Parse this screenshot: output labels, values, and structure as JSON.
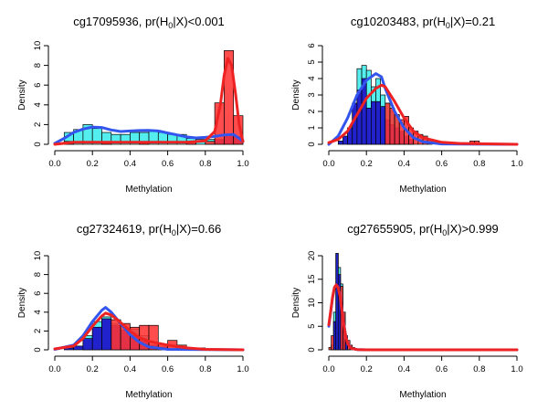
{
  "figure": {
    "colors": {
      "cyan": "#55eeee",
      "blue": "#2222cc",
      "red": "#ff3333",
      "blue_line": "#3355ee",
      "red_line": "#ee2222"
    }
  },
  "chart_data": [
    {
      "type": "bar",
      "title_prefix": "cg17095936, pr(H",
      "title_sub": "0",
      "title_suffix": "|X)<0.001",
      "xlabel": "Methylation",
      "ylabel": "Density",
      "xlim": [
        0.0,
        1.0
      ],
      "ylim": [
        0,
        10
      ],
      "xticks": [
        "0.0",
        "0.2",
        "0.4",
        "0.6",
        "0.8",
        "1.0"
      ],
      "yticks": [
        "0",
        "2",
        "4",
        "6",
        "8",
        "10"
      ],
      "bin_width": 0.05,
      "bins_cyan": [
        [
          0.05,
          0.1,
          1.2
        ],
        [
          0.1,
          0.15,
          1.5
        ],
        [
          0.15,
          0.2,
          2.0
        ],
        [
          0.2,
          0.25,
          1.6
        ],
        [
          0.25,
          0.3,
          1.2
        ],
        [
          0.3,
          0.35,
          1.0
        ],
        [
          0.35,
          0.4,
          1.0
        ],
        [
          0.4,
          0.45,
          1.2
        ],
        [
          0.45,
          0.5,
          1.2
        ],
        [
          0.5,
          0.55,
          1.3
        ],
        [
          0.55,
          0.6,
          1.2
        ],
        [
          0.6,
          0.65,
          1.0
        ],
        [
          0.65,
          0.7,
          1.0
        ],
        [
          0.7,
          0.75,
          0.6
        ],
        [
          0.75,
          0.8,
          0.5
        ],
        [
          0.8,
          0.85,
          0.5
        ]
      ],
      "bins_blue": [
        [
          0.85,
          0.9,
          0.5
        ],
        [
          0.9,
          0.95,
          1.0
        ],
        [
          0.95,
          1.0,
          0.8
        ]
      ],
      "bins_red": [
        [
          0.05,
          0.1,
          0.3
        ],
        [
          0.25,
          0.3,
          0.2
        ],
        [
          0.45,
          0.5,
          0.2
        ],
        [
          0.7,
          0.75,
          0.2
        ],
        [
          0.8,
          0.85,
          0.3
        ],
        [
          0.85,
          0.9,
          4.2
        ],
        [
          0.9,
          0.95,
          9.5
        ],
        [
          0.95,
          1.0,
          2.9
        ]
      ],
      "curve_blue": [
        [
          0.0,
          0.1
        ],
        [
          0.05,
          0.6
        ],
        [
          0.1,
          1.2
        ],
        [
          0.15,
          1.55
        ],
        [
          0.2,
          1.75
        ],
        [
          0.25,
          1.7
        ],
        [
          0.3,
          1.45
        ],
        [
          0.35,
          1.3
        ],
        [
          0.4,
          1.35
        ],
        [
          0.45,
          1.4
        ],
        [
          0.5,
          1.42
        ],
        [
          0.55,
          1.35
        ],
        [
          0.6,
          1.15
        ],
        [
          0.65,
          0.95
        ],
        [
          0.7,
          0.75
        ],
        [
          0.75,
          0.65
        ],
        [
          0.8,
          0.7
        ],
        [
          0.85,
          0.8
        ],
        [
          0.9,
          0.95
        ],
        [
          0.95,
          1.0
        ],
        [
          0.98,
          0.6
        ],
        [
          1.0,
          0.3
        ]
      ],
      "curve_red": [
        [
          0.0,
          0.0
        ],
        [
          0.1,
          0.2
        ],
        [
          0.3,
          0.2
        ],
        [
          0.5,
          0.2
        ],
        [
          0.7,
          0.2
        ],
        [
          0.8,
          0.35
        ],
        [
          0.85,
          1.3
        ],
        [
          0.88,
          4.0
        ],
        [
          0.9,
          7.0
        ],
        [
          0.92,
          8.7
        ],
        [
          0.94,
          8.0
        ],
        [
          0.96,
          5.2
        ],
        [
          0.98,
          2.0
        ],
        [
          1.0,
          0.3
        ]
      ]
    },
    {
      "type": "bar",
      "title_prefix": "cg10203483, pr(H",
      "title_sub": "0",
      "title_suffix": "|X)=0.21",
      "xlabel": "Methylation",
      "ylabel": "Density",
      "xlim": [
        0.0,
        1.0
      ],
      "ylim": [
        0,
        6
      ],
      "xticks": [
        "0.0",
        "0.2",
        "0.4",
        "0.6",
        "0.8",
        "1.0"
      ],
      "yticks": [
        "0",
        "1",
        "2",
        "3",
        "4",
        "5",
        "6"
      ],
      "bin_width": 0.025,
      "bins_cyan": [
        [
          0.1,
          0.125,
          1.0
        ],
        [
          0.125,
          0.15,
          2.5
        ],
        [
          0.15,
          0.175,
          4.6
        ],
        [
          0.175,
          0.2,
          4.8
        ],
        [
          0.2,
          0.225,
          4.5
        ],
        [
          0.225,
          0.25,
          3.5
        ],
        [
          0.25,
          0.275,
          4.0
        ],
        [
          0.275,
          0.3,
          3.0
        ],
        [
          0.3,
          0.325,
          2.5
        ],
        [
          0.325,
          0.35,
          2.0
        ],
        [
          0.35,
          0.375,
          1.8
        ]
      ],
      "bins_blue": [
        [
          0.05,
          0.075,
          0.2
        ],
        [
          0.075,
          0.1,
          0.5
        ],
        [
          0.1,
          0.125,
          1.0
        ],
        [
          0.125,
          0.15,
          2.5
        ],
        [
          0.15,
          0.175,
          3.3
        ],
        [
          0.175,
          0.2,
          4.0
        ],
        [
          0.2,
          0.225,
          2.2
        ],
        [
          0.225,
          0.25,
          2.6
        ],
        [
          0.25,
          0.275,
          2.6
        ],
        [
          0.275,
          0.3,
          2.3
        ],
        [
          0.3,
          0.325,
          1.5
        ],
        [
          0.325,
          0.35,
          1.2
        ],
        [
          0.35,
          0.375,
          1.0
        ],
        [
          0.375,
          0.4,
          0.8
        ],
        [
          0.4,
          0.425,
          0.5
        ],
        [
          0.425,
          0.45,
          0.3
        ]
      ],
      "bins_red": [
        [
          0.3,
          0.325,
          2.5
        ],
        [
          0.325,
          0.35,
          2.2
        ],
        [
          0.35,
          0.375,
          1.8
        ],
        [
          0.375,
          0.4,
          1.5
        ],
        [
          0.4,
          0.425,
          1.7
        ],
        [
          0.425,
          0.45,
          1.0
        ],
        [
          0.45,
          0.475,
          0.8
        ],
        [
          0.475,
          0.5,
          0.6
        ],
        [
          0.5,
          0.525,
          0.5
        ],
        [
          0.525,
          0.55,
          0.3
        ],
        [
          0.6,
          0.625,
          0.15
        ],
        [
          0.75,
          0.775,
          0.2
        ],
        [
          0.775,
          0.8,
          0.2
        ]
      ],
      "curve_blue": [
        [
          0.0,
          0.0
        ],
        [
          0.05,
          0.5
        ],
        [
          0.1,
          1.6
        ],
        [
          0.15,
          3.0
        ],
        [
          0.2,
          3.9
        ],
        [
          0.25,
          4.3
        ],
        [
          0.28,
          4.1
        ],
        [
          0.3,
          3.4
        ],
        [
          0.35,
          2.0
        ],
        [
          0.4,
          1.0
        ],
        [
          0.45,
          0.4
        ],
        [
          0.5,
          0.15
        ],
        [
          0.6,
          0.02
        ],
        [
          1.0,
          0.0
        ]
      ],
      "curve_red": [
        [
          0.0,
          0.1
        ],
        [
          0.05,
          0.3
        ],
        [
          0.1,
          0.8
        ],
        [
          0.15,
          1.8
        ],
        [
          0.2,
          2.8
        ],
        [
          0.25,
          3.4
        ],
        [
          0.28,
          3.6
        ],
        [
          0.3,
          3.5
        ],
        [
          0.35,
          2.6
        ],
        [
          0.4,
          1.6
        ],
        [
          0.45,
          0.8
        ],
        [
          0.5,
          0.4
        ],
        [
          0.6,
          0.12
        ],
        [
          0.7,
          0.05
        ],
        [
          1.0,
          0.0
        ]
      ]
    },
    {
      "type": "bar",
      "title_prefix": "cg27324619, pr(H",
      "title_sub": "0",
      "title_suffix": "|X)=0.66",
      "xlabel": "Methylation",
      "ylabel": "Density",
      "xlim": [
        0.0,
        1.0
      ],
      "ylim": [
        0,
        10
      ],
      "xticks": [
        "0.0",
        "0.2",
        "0.4",
        "0.6",
        "0.8",
        "1.0"
      ],
      "yticks": [
        "0",
        "2",
        "4",
        "6",
        "8",
        "10"
      ],
      "bin_width": 0.05,
      "bins_cyan": [
        [
          0.15,
          0.2,
          1.5
        ],
        [
          0.2,
          0.25,
          3.0
        ],
        [
          0.25,
          0.3,
          3.5
        ],
        [
          0.3,
          0.35,
          2.8
        ],
        [
          0.35,
          0.4,
          2.0
        ],
        [
          0.4,
          0.45,
          2.2
        ],
        [
          0.45,
          0.5,
          1.5
        ]
      ],
      "bins_blue": [
        [
          0.05,
          0.1,
          0.2
        ],
        [
          0.1,
          0.15,
          0.4
        ],
        [
          0.15,
          0.2,
          1.2
        ],
        [
          0.2,
          0.25,
          2.4
        ],
        [
          0.25,
          0.3,
          3.3
        ],
        [
          0.3,
          0.35,
          2.6
        ],
        [
          0.35,
          0.4,
          2.1
        ],
        [
          0.4,
          0.45,
          1.5
        ],
        [
          0.45,
          0.5,
          1.0
        ],
        [
          0.5,
          0.55,
          0.5
        ],
        [
          0.55,
          0.6,
          0.3
        ]
      ],
      "bins_red": [
        [
          0.3,
          0.35,
          3.2
        ],
        [
          0.35,
          0.4,
          2.8
        ],
        [
          0.4,
          0.45,
          2.4
        ],
        [
          0.45,
          0.5,
          2.6
        ],
        [
          0.5,
          0.55,
          2.6
        ],
        [
          0.55,
          0.6,
          0.6
        ],
        [
          0.6,
          0.65,
          1.0
        ],
        [
          0.65,
          0.7,
          0.5
        ],
        [
          0.75,
          0.8,
          0.2
        ],
        [
          0.85,
          0.9,
          0.1
        ]
      ],
      "curve_blue": [
        [
          0.0,
          0.05
        ],
        [
          0.1,
          0.5
        ],
        [
          0.15,
          1.5
        ],
        [
          0.2,
          3.0
        ],
        [
          0.25,
          4.2
        ],
        [
          0.27,
          4.5
        ],
        [
          0.3,
          4.0
        ],
        [
          0.35,
          2.8
        ],
        [
          0.4,
          1.6
        ],
        [
          0.45,
          0.8
        ],
        [
          0.5,
          0.3
        ],
        [
          0.6,
          0.05
        ],
        [
          1.0,
          0.0
        ]
      ],
      "curve_red": [
        [
          0.0,
          0.1
        ],
        [
          0.1,
          0.4
        ],
        [
          0.15,
          1.2
        ],
        [
          0.2,
          2.5
        ],
        [
          0.25,
          3.6
        ],
        [
          0.27,
          3.9
        ],
        [
          0.3,
          3.7
        ],
        [
          0.35,
          2.9
        ],
        [
          0.4,
          2.0
        ],
        [
          0.45,
          1.3
        ],
        [
          0.5,
          0.9
        ],
        [
          0.55,
          0.7
        ],
        [
          0.6,
          0.5
        ],
        [
          0.7,
          0.2
        ],
        [
          0.8,
          0.05
        ],
        [
          1.0,
          0.0
        ]
      ]
    },
    {
      "type": "bar",
      "title_prefix": "cg27655905, pr(H",
      "title_sub": "0",
      "title_suffix": "|X)>0.999",
      "xlabel": "Methylation",
      "ylabel": "Density",
      "xlim": [
        0.0,
        1.0
      ],
      "ylim": [
        0,
        20
      ],
      "xticks": [
        "0.0",
        "0.2",
        "0.4",
        "0.6",
        "0.8",
        "1.0"
      ],
      "yticks": [
        "0",
        "5",
        "10",
        "15",
        "20"
      ],
      "bin_width": 0.0125,
      "bins_cyan": [
        [
          0.0125,
          0.025,
          1.0
        ],
        [
          0.025,
          0.0375,
          8.0
        ],
        [
          0.0375,
          0.05,
          20.5
        ],
        [
          0.05,
          0.0625,
          17.5
        ],
        [
          0.0625,
          0.075,
          14.0
        ],
        [
          0.075,
          0.0875,
          8.0
        ],
        [
          0.0875,
          0.1,
          3.0
        ],
        [
          0.1,
          0.1125,
          1.0
        ]
      ],
      "bins_blue": [
        [
          0.025,
          0.0375,
          6.0
        ],
        [
          0.0375,
          0.05,
          20.5
        ],
        [
          0.05,
          0.0625,
          16.0
        ],
        [
          0.0625,
          0.075,
          10.0
        ],
        [
          0.075,
          0.0875,
          6.0
        ],
        [
          0.0875,
          0.1,
          1.5
        ]
      ],
      "bins_red": [
        [
          0.0,
          0.0125,
          0.5
        ],
        [
          0.0125,
          0.025,
          3.0
        ],
        [
          0.0625,
          0.075,
          13.5
        ],
        [
          0.075,
          0.0875,
          8.0
        ],
        [
          0.1,
          0.1125,
          2.0
        ],
        [
          0.1125,
          0.125,
          1.0
        ],
        [
          0.125,
          0.1375,
          0.5
        ]
      ],
      "curve_blue": [
        [
          0.0,
          5.0
        ],
        [
          0.01,
          8.0
        ],
        [
          0.02,
          11.0
        ],
        [
          0.03,
          13.2
        ],
        [
          0.04,
          13.8
        ],
        [
          0.05,
          13.3
        ],
        [
          0.06,
          11.5
        ],
        [
          0.07,
          8.5
        ],
        [
          0.08,
          5.5
        ],
        [
          0.09,
          3.0
        ],
        [
          0.1,
          1.4
        ],
        [
          0.12,
          0.3
        ],
        [
          0.15,
          0.05
        ],
        [
          0.2,
          0.0
        ],
        [
          1.0,
          0.0
        ]
      ],
      "curve_red": [
        [
          0.0,
          5.3
        ],
        [
          0.01,
          8.3
        ],
        [
          0.02,
          11.2
        ],
        [
          0.03,
          13.3
        ],
        [
          0.04,
          13.8
        ],
        [
          0.05,
          13.2
        ],
        [
          0.06,
          11.3
        ],
        [
          0.07,
          8.3
        ],
        [
          0.08,
          5.3
        ],
        [
          0.09,
          2.9
        ],
        [
          0.1,
          1.3
        ],
        [
          0.12,
          0.3
        ],
        [
          0.15,
          0.05
        ],
        [
          0.2,
          0.0
        ],
        [
          1.0,
          0.0
        ]
      ]
    }
  ]
}
